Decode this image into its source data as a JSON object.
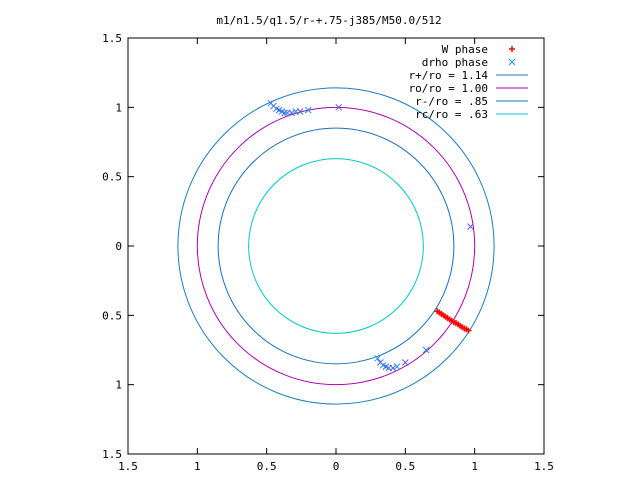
{
  "chart_data": {
    "type": "scatter",
    "title": "m1/n1.5/q1.5/r-+.75-j385/M50.0/512",
    "xlabel": "",
    "ylabel": "",
    "xlim": [
      -1.5,
      1.5
    ],
    "ylim": [
      -1.5,
      1.5
    ],
    "x_ticks": [
      -1.5,
      -1,
      -0.5,
      0,
      0.5,
      1,
      1.5
    ],
    "y_ticks": [
      -1.5,
      -1,
      -0.5,
      0,
      0.5,
      1,
      1.5
    ],
    "x_tick_labels": [
      "1.5",
      "1",
      "0.5",
      "0",
      "0.5",
      "1",
      "1.5"
    ],
    "y_tick_labels": [
      "1.5",
      "1",
      "0.5",
      "0",
      "0.5",
      "1",
      "1.5"
    ],
    "grid": false,
    "legend_position": "top-right",
    "series": [
      {
        "name": "W phase",
        "kind": "points",
        "marker": "plus",
        "color": "#ff0000",
        "x": [
          0.73,
          0.745,
          0.76,
          0.775,
          0.79,
          0.805,
          0.82,
          0.835,
          0.85,
          0.865,
          0.88,
          0.895,
          0.91,
          0.925,
          0.94,
          0.955
        ],
        "y": [
          -0.47,
          -0.48,
          -0.49,
          -0.5,
          -0.51,
          -0.52,
          -0.53,
          -0.54,
          -0.55,
          -0.555,
          -0.565,
          -0.575,
          -0.585,
          -0.595,
          -0.6,
          -0.61
        ]
      },
      {
        "name": "drho phase",
        "kind": "points",
        "marker": "cross",
        "colors": [
          "#1e90ff",
          "#6060d0"
        ],
        "x": [
          -0.47,
          -0.45,
          -0.43,
          -0.41,
          -0.39,
          -0.37,
          -0.35,
          -0.32,
          -0.29,
          -0.26,
          -0.2,
          0.02,
          0.3,
          0.32,
          0.34,
          0.36,
          0.38,
          0.41,
          0.44,
          0.5,
          0.65,
          0.97
        ],
        "y": [
          1.03,
          1.01,
          0.99,
          0.98,
          0.97,
          0.96,
          0.96,
          0.96,
          0.97,
          0.97,
          0.98,
          1.0,
          -0.81,
          -0.84,
          -0.86,
          -0.87,
          -0.88,
          -0.88,
          -0.87,
          -0.84,
          -0.75,
          0.14
        ]
      },
      {
        "name": "r+/ro = 1.14",
        "kind": "circle",
        "radius": 1.14,
        "color": "#1a7fc0"
      },
      {
        "name": "ro/ro = 1.00",
        "kind": "circle",
        "radius": 1.0,
        "color": "#b000b0"
      },
      {
        "name": "r-/ro = .85",
        "kind": "circle",
        "radius": 0.85,
        "color": "#1a6fc0"
      },
      {
        "name": "rc/ro = .63",
        "kind": "circle",
        "radius": 0.63,
        "color": "#00c8d0"
      }
    ]
  }
}
